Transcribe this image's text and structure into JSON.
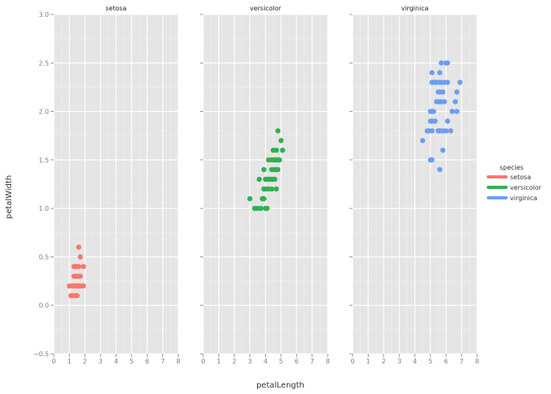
{
  "chart_data": {
    "type": "scatter",
    "facet_by": "species",
    "xlabel": "petalLength",
    "ylabel": "petalWidth",
    "xlim": [
      0,
      8
    ],
    "ylim": [
      -0.5,
      3.0
    ],
    "x_ticks": [
      0,
      1,
      2,
      3,
      4,
      5,
      6,
      7,
      8
    ],
    "y_ticks": [
      -0.5,
      0.0,
      0.5,
      1.0,
      1.5,
      2.0,
      2.5,
      3.0
    ],
    "y_tick_labels": [
      "−0.5",
      "0.0",
      "0.5",
      "1.0",
      "1.5",
      "2.0",
      "2.5",
      "3.0"
    ],
    "grid": true,
    "legend": {
      "title": "species",
      "position": "right",
      "entries": [
        {
          "label": "setosa",
          "color": "#f8766d"
        },
        {
          "label": "versicolor",
          "color": "#2fb14e"
        },
        {
          "label": "virginica",
          "color": "#6a9ef3"
        }
      ]
    },
    "series": [
      {
        "name": "setosa",
        "color": "#f8766d",
        "points": [
          [
            1.0,
            0.2
          ],
          [
            1.1,
            0.1
          ],
          [
            1.2,
            0.2
          ],
          [
            1.3,
            0.2
          ],
          [
            1.3,
            0.3
          ],
          [
            1.3,
            0.4
          ],
          [
            1.4,
            0.1
          ],
          [
            1.4,
            0.2
          ],
          [
            1.4,
            0.3
          ],
          [
            1.5,
            0.1
          ],
          [
            1.5,
            0.2
          ],
          [
            1.5,
            0.4
          ],
          [
            1.6,
            0.2
          ],
          [
            1.6,
            0.4
          ],
          [
            1.6,
            0.6
          ],
          [
            1.7,
            0.3
          ],
          [
            1.7,
            0.5
          ],
          [
            1.9,
            0.2
          ],
          [
            1.9,
            0.4
          ],
          [
            1.5,
            0.3
          ],
          [
            1.6,
            0.3
          ],
          [
            1.4,
            0.4
          ],
          [
            1.7,
            0.2
          ],
          [
            1.2,
            0.1
          ]
        ]
      },
      {
        "name": "versicolor",
        "color": "#2fb14e",
        "points": [
          [
            3.0,
            1.1
          ],
          [
            3.3,
            1.0
          ],
          [
            3.5,
            1.0
          ],
          [
            3.6,
            1.3
          ],
          [
            3.7,
            1.0
          ],
          [
            3.8,
            1.1
          ],
          [
            3.9,
            1.1
          ],
          [
            3.9,
            1.2
          ],
          [
            3.9,
            1.4
          ],
          [
            4.0,
            1.0
          ],
          [
            4.0,
            1.2
          ],
          [
            4.0,
            1.3
          ],
          [
            4.1,
            1.0
          ],
          [
            4.1,
            1.3
          ],
          [
            4.2,
            1.2
          ],
          [
            4.2,
            1.3
          ],
          [
            4.2,
            1.5
          ],
          [
            4.3,
            1.3
          ],
          [
            4.4,
            1.2
          ],
          [
            4.4,
            1.3
          ],
          [
            4.4,
            1.4
          ],
          [
            4.5,
            1.3
          ],
          [
            4.5,
            1.5
          ],
          [
            4.5,
            1.6
          ],
          [
            4.6,
            1.3
          ],
          [
            4.6,
            1.4
          ],
          [
            4.6,
            1.5
          ],
          [
            4.7,
            1.2
          ],
          [
            4.7,
            1.4
          ],
          [
            4.7,
            1.5
          ],
          [
            4.7,
            1.6
          ],
          [
            4.8,
            1.4
          ],
          [
            4.8,
            1.8
          ],
          [
            4.9,
            1.5
          ],
          [
            5.0,
            1.7
          ],
          [
            5.1,
            1.6
          ],
          [
            4.5,
            1.4
          ],
          [
            4.4,
            1.5
          ],
          [
            4.8,
            1.5
          ]
        ]
      },
      {
        "name": "virginica",
        "color": "#6a9ef3",
        "points": [
          [
            4.5,
            1.7
          ],
          [
            4.8,
            1.8
          ],
          [
            4.9,
            1.8
          ],
          [
            5.0,
            1.5
          ],
          [
            5.0,
            1.9
          ],
          [
            5.0,
            2.0
          ],
          [
            5.1,
            1.5
          ],
          [
            5.1,
            1.8
          ],
          [
            5.1,
            1.9
          ],
          [
            5.1,
            2.0
          ],
          [
            5.1,
            2.3
          ],
          [
            5.1,
            2.4
          ],
          [
            5.2,
            2.0
          ],
          [
            5.2,
            2.3
          ],
          [
            5.3,
            1.9
          ],
          [
            5.3,
            2.3
          ],
          [
            5.4,
            2.1
          ],
          [
            5.4,
            2.3
          ],
          [
            5.5,
            1.8
          ],
          [
            5.5,
            2.1
          ],
          [
            5.5,
            2.2
          ],
          [
            5.6,
            1.4
          ],
          [
            5.6,
            1.8
          ],
          [
            5.6,
            2.1
          ],
          [
            5.6,
            2.2
          ],
          [
            5.6,
            2.4
          ],
          [
            5.7,
            2.1
          ],
          [
            5.7,
            2.3
          ],
          [
            5.7,
            2.5
          ],
          [
            5.8,
            1.6
          ],
          [
            5.8,
            1.8
          ],
          [
            5.8,
            2.2
          ],
          [
            5.9,
            2.1
          ],
          [
            5.9,
            2.3
          ],
          [
            6.0,
            1.8
          ],
          [
            6.0,
            2.5
          ],
          [
            6.1,
            1.9
          ],
          [
            6.1,
            2.3
          ],
          [
            6.1,
            2.5
          ],
          [
            6.3,
            1.8
          ],
          [
            6.4,
            2.0
          ],
          [
            6.6,
            2.1
          ],
          [
            6.7,
            2.0
          ],
          [
            6.7,
            2.2
          ],
          [
            6.9,
            2.3
          ],
          [
            5.6,
            2.3
          ]
        ]
      }
    ]
  }
}
